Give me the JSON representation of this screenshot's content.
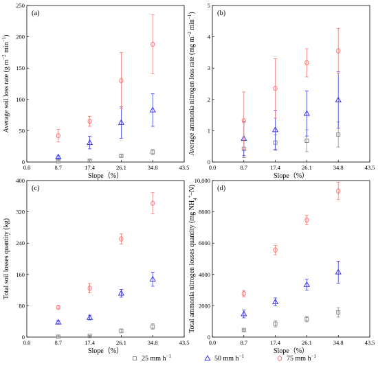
{
  "series_style": [
    {
      "marker": "square",
      "color": "#8c8c8c"
    },
    {
      "marker": "triangle",
      "color": "#3a3ae0"
    },
    {
      "marker": "circle",
      "color": "#ee7a7a"
    }
  ],
  "legend": {
    "placement": "bottom-center",
    "items": [
      {
        "prefix": "25 mm h",
        "sup": "−1"
      },
      {
        "prefix": "50 mm h",
        "sup": "−1"
      },
      {
        "prefix": "75 mm h",
        "sup": "−1"
      }
    ]
  },
  "chart_data": [
    {
      "type": "scatter",
      "panel": "(a)",
      "xlabel": "Slope（%）",
      "ylabel": {
        "text": "Average soil loss rate (g m",
        "sup1": "−2",
        "mid": " min",
        "sup2": "−1",
        "end": ")"
      },
      "xlim": [
        0,
        43.5
      ],
      "ylim": [
        0,
        250
      ],
      "xticks": [
        0.0,
        8.7,
        17.4,
        26.1,
        34.8,
        43.5
      ],
      "xtick_labels": [
        "0.0",
        "8.7",
        "17.4",
        "26.1",
        "34.8",
        "43.5"
      ],
      "yticks": [
        0,
        50,
        100,
        150,
        200,
        250
      ],
      "ytick_labels": [
        "0",
        "50",
        "100",
        "150",
        "200",
        "250"
      ],
      "x": [
        8.7,
        17.4,
        26.1,
        34.8
      ],
      "series": [
        {
          "values": [
            1,
            2,
            10,
            16
          ],
          "err": [
            1,
            1.5,
            2,
            4
          ]
        },
        {
          "values": [
            8,
            31,
            63,
            83
          ],
          "err": [
            2,
            10,
            25,
            26
          ]
        },
        {
          "values": [
            42,
            65,
            130,
            188
          ],
          "err": [
            10,
            8,
            45,
            47
          ]
        }
      ]
    },
    {
      "type": "scatter",
      "panel": "(b)",
      "xlabel": "Slope（%）",
      "ylabel": {
        "text": "Average ammonia nitrogen loss rate (mg m",
        "sup1": "−2",
        "mid": " min",
        "sup2": "−1",
        "end": ")"
      },
      "xlim": [
        0,
        43.5
      ],
      "ylim": [
        0,
        5
      ],
      "xticks": [
        0.0,
        8.7,
        17.4,
        26.1,
        34.8,
        43.5
      ],
      "xtick_labels": [
        "0.0",
        "8.7",
        "17.4",
        "26.1",
        "34.8",
        "43.5"
      ],
      "yticks": [
        0,
        1,
        2,
        3,
        4,
        5
      ],
      "ytick_labels": [
        "0",
        "1",
        "2",
        "3",
        "4",
        "5"
      ],
      "x": [
        8.7,
        17.4,
        26.1,
        34.8
      ],
      "series": [
        {
          "values": [
            0.42,
            0.62,
            0.68,
            0.88
          ],
          "err": [
            0.28,
            0.25,
            0.35,
            0.4
          ]
        },
        {
          "values": [
            0.75,
            1.03,
            1.55,
            1.98
          ],
          "err": [
            0.55,
            0.62,
            0.72,
            0.9
          ]
        },
        {
          "values": [
            1.32,
            2.35,
            3.17,
            3.55
          ],
          "err": [
            0.92,
            0.95,
            0.45,
            0.72
          ]
        }
      ]
    },
    {
      "type": "scatter",
      "panel": "(c)",
      "xlabel": "Slope（%）",
      "ylabel": {
        "text": "Total soil losses quantity (kg)"
      },
      "xlim": [
        0,
        43.5
      ],
      "ylim": [
        0,
        400
      ],
      "xticks": [
        0.0,
        8.7,
        17.4,
        26.1,
        34.8,
        43.5
      ],
      "xtick_labels": [
        "0.0",
        "8.7",
        "17.4",
        "26.1",
        "34.8",
        "43.5"
      ],
      "yticks": [
        0,
        80,
        160,
        240,
        320,
        400
      ],
      "ytick_labels": [
        "0",
        "80",
        "160",
        "240",
        "320",
        "400"
      ],
      "x": [
        8.7,
        17.4,
        26.1,
        34.8
      ],
      "series": [
        {
          "values": [
            1,
            3,
            16,
            27
          ],
          "err": [
            1,
            1.5,
            5,
            7
          ]
        },
        {
          "values": [
            38,
            50,
            112,
            148
          ],
          "err": [
            4,
            6,
            10,
            18
          ]
        },
        {
          "values": [
            76,
            125,
            251,
            342
          ],
          "err": [
            4,
            12,
            13,
            27
          ]
        }
      ]
    },
    {
      "type": "scatter",
      "panel": "(d)",
      "xlabel": "Slope（%）",
      "ylabel": {
        "text": "Total ammonia nitrogen losses quantity (mg NH",
        "sub": "4",
        "sup": "+",
        "end": "−N)"
      },
      "xlim": [
        0,
        43.5
      ],
      "ylim": [
        0,
        10000
      ],
      "xticks": [
        0.0,
        8.7,
        17.4,
        26.1,
        34.8,
        43.5
      ],
      "xtick_labels": [
        "0.0",
        "8.7",
        "17.4",
        "26.1",
        "34.8",
        "43.5"
      ],
      "yticks": [
        0,
        2000,
        4000,
        6000,
        8000,
        10000
      ],
      "ytick_labels": [
        "0",
        "2000",
        "4000",
        "6000",
        "8000",
        "10,000"
      ],
      "x": [
        8.7,
        17.4,
        26.1,
        34.8
      ],
      "series": [
        {
          "values": [
            450,
            850,
            1150,
            1580
          ],
          "err": [
            60,
            200,
            180,
            300
          ]
        },
        {
          "values": [
            1480,
            2250,
            3350,
            4150
          ],
          "err": [
            250,
            250,
            350,
            700
          ]
        },
        {
          "values": [
            2780,
            5560,
            7480,
            9330
          ],
          "err": [
            200,
            300,
            300,
            550
          ]
        }
      ]
    }
  ]
}
